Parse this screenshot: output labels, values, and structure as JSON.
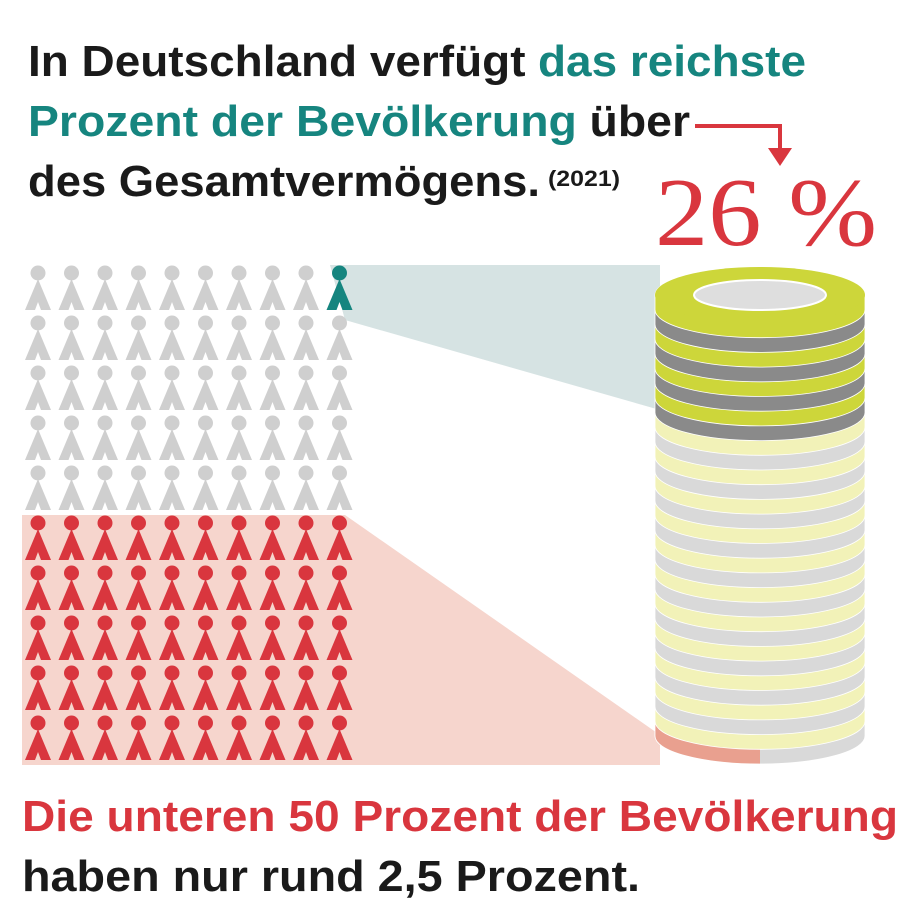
{
  "headline": {
    "line1": [
      "In Deutschland verfügt",
      "das reichste"
    ],
    "line2": [
      "Prozent der Bevölkerung",
      "über"
    ],
    "line3": "des Gesamtvermögens.",
    "year": "(2021)"
  },
  "share": "26 %",
  "footer": {
    "highlight": "Die unteren 50 Prozent der Bevölkerung",
    "text": "haben nur rund 2,5 Prozent."
  }
}
